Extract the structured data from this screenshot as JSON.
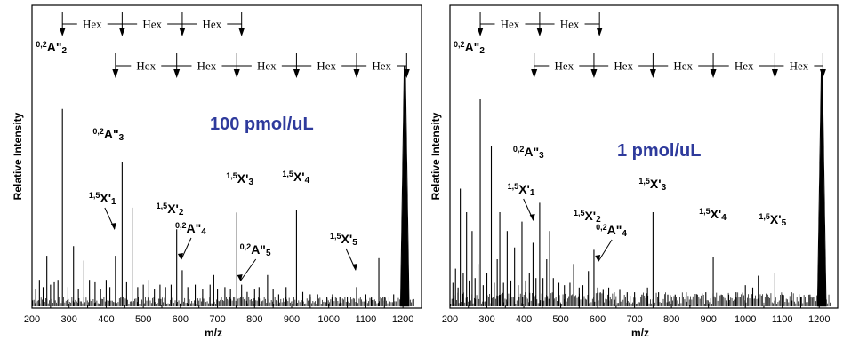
{
  "colors": {
    "concentration_text": "#2e3a9c"
  },
  "chart_data": [
    {
      "type": "line",
      "panel": "left",
      "concentration": "100 pmol/uL",
      "xlabel": "m/z",
      "ylabel": "Relative Intensity",
      "xlim": [
        200,
        1250
      ],
      "ylim": [
        0,
        100
      ],
      "grid": false,
      "x_ticks": [
        200,
        300,
        400,
        500,
        600,
        700,
        800,
        900,
        1000,
        1100,
        1200
      ],
      "peaks": [
        {
          "mz": 210,
          "i": 7
        },
        {
          "mz": 220,
          "i": 11
        },
        {
          "mz": 230,
          "i": 8
        },
        {
          "mz": 240,
          "i": 21
        },
        {
          "mz": 250,
          "i": 9
        },
        {
          "mz": 260,
          "i": 10
        },
        {
          "mz": 270,
          "i": 11
        },
        {
          "mz": 282,
          "i": 82
        },
        {
          "mz": 297,
          "i": 8
        },
        {
          "mz": 312,
          "i": 25
        },
        {
          "mz": 325,
          "i": 7
        },
        {
          "mz": 340,
          "i": 19
        },
        {
          "mz": 355,
          "i": 11
        },
        {
          "mz": 370,
          "i": 10
        },
        {
          "mz": 385,
          "i": 7
        },
        {
          "mz": 400,
          "i": 11
        },
        {
          "mz": 410,
          "i": 8
        },
        {
          "mz": 425,
          "i": 21
        },
        {
          "mz": 443,
          "i": 60
        },
        {
          "mz": 455,
          "i": 10
        },
        {
          "mz": 470,
          "i": 41
        },
        {
          "mz": 485,
          "i": 8
        },
        {
          "mz": 500,
          "i": 9
        },
        {
          "mz": 515,
          "i": 11
        },
        {
          "mz": 530,
          "i": 7
        },
        {
          "mz": 545,
          "i": 9
        },
        {
          "mz": 560,
          "i": 8
        },
        {
          "mz": 575,
          "i": 9
        },
        {
          "mz": 590,
          "i": 32
        },
        {
          "mz": 605,
          "i": 15
        },
        {
          "mz": 620,
          "i": 8
        },
        {
          "mz": 640,
          "i": 9
        },
        {
          "mz": 660,
          "i": 7
        },
        {
          "mz": 680,
          "i": 9
        },
        {
          "mz": 690,
          "i": 13
        },
        {
          "mz": 700,
          "i": 7
        },
        {
          "mz": 720,
          "i": 8
        },
        {
          "mz": 735,
          "i": 7
        },
        {
          "mz": 752,
          "i": 39
        },
        {
          "mz": 765,
          "i": 9
        },
        {
          "mz": 780,
          "i": 6
        },
        {
          "mz": 800,
          "i": 7
        },
        {
          "mz": 812,
          "i": 8
        },
        {
          "mz": 835,
          "i": 13
        },
        {
          "mz": 850,
          "i": 7
        },
        {
          "mz": 865,
          "i": 5
        },
        {
          "mz": 885,
          "i": 8
        },
        {
          "mz": 913,
          "i": 40
        },
        {
          "mz": 930,
          "i": 6
        },
        {
          "mz": 950,
          "i": 5
        },
        {
          "mz": 970,
          "i": 5
        },
        {
          "mz": 995,
          "i": 4
        },
        {
          "mz": 1010,
          "i": 5
        },
        {
          "mz": 1030,
          "i": 4
        },
        {
          "mz": 1050,
          "i": 4
        },
        {
          "mz": 1075,
          "i": 8
        },
        {
          "mz": 1100,
          "i": 5
        },
        {
          "mz": 1115,
          "i": 4
        },
        {
          "mz": 1135,
          "i": 20
        },
        {
          "mz": 1150,
          "i": 4
        },
        {
          "mz": 1175,
          "i": 5
        },
        {
          "mz": 1205,
          "i": 100
        }
      ],
      "annotations": [
        {
          "label": "A\"2",
          "sup": "0,2",
          "mz": 282
        },
        {
          "label": "A\"3",
          "sup": "0,2",
          "mz": 443
        },
        {
          "label": "X'1",
          "sup": "1,5",
          "mz": 425
        },
        {
          "label": "X'2",
          "sup": "1,5",
          "mz": 590
        },
        {
          "label": "A\"4",
          "sup": "0,2",
          "mz": 605
        },
        {
          "label": "X'3",
          "sup": "1,5",
          "mz": 752
        },
        {
          "label": "A\"5",
          "sup": "0,2",
          "mz": 765
        },
        {
          "label": "X'4",
          "sup": "1,5",
          "mz": 913
        },
        {
          "label": "X'5",
          "sup": "1,5",
          "mz": 1075
        }
      ],
      "hex_ladder_top": {
        "label": "Hex",
        "ticks": [
          282,
          443,
          605,
          765
        ]
      },
      "hex_ladder_bottom": {
        "label": "Hex",
        "ticks": [
          425,
          590,
          752,
          913,
          1075,
          1210
        ]
      }
    },
    {
      "type": "line",
      "panel": "right",
      "concentration": "1 pmol/uL",
      "xlabel": "m/z",
      "ylabel": "Relative Intensity",
      "xlim": [
        200,
        1250
      ],
      "ylim": [
        0,
        100
      ],
      "grid": false,
      "x_ticks": [
        200,
        300,
        400,
        500,
        600,
        700,
        800,
        900,
        1000,
        1100,
        1200
      ],
      "peaks": [
        {
          "mz": 208,
          "i": 10
        },
        {
          "mz": 215,
          "i": 16
        },
        {
          "mz": 222,
          "i": 8
        },
        {
          "mz": 228,
          "i": 50
        },
        {
          "mz": 236,
          "i": 14
        },
        {
          "mz": 245,
          "i": 40
        },
        {
          "mz": 252,
          "i": 11
        },
        {
          "mz": 260,
          "i": 32
        },
        {
          "mz": 268,
          "i": 12
        },
        {
          "mz": 276,
          "i": 18
        },
        {
          "mz": 282,
          "i": 88
        },
        {
          "mz": 290,
          "i": 9
        },
        {
          "mz": 300,
          "i": 14
        },
        {
          "mz": 312,
          "i": 68
        },
        {
          "mz": 320,
          "i": 10
        },
        {
          "mz": 328,
          "i": 20
        },
        {
          "mz": 335,
          "i": 40
        },
        {
          "mz": 345,
          "i": 10
        },
        {
          "mz": 355,
          "i": 32
        },
        {
          "mz": 365,
          "i": 11
        },
        {
          "mz": 375,
          "i": 25
        },
        {
          "mz": 385,
          "i": 9
        },
        {
          "mz": 395,
          "i": 36
        },
        {
          "mz": 405,
          "i": 11
        },
        {
          "mz": 415,
          "i": 14
        },
        {
          "mz": 425,
          "i": 27
        },
        {
          "mz": 433,
          "i": 12
        },
        {
          "mz": 443,
          "i": 44
        },
        {
          "mz": 452,
          "i": 12
        },
        {
          "mz": 462,
          "i": 20
        },
        {
          "mz": 470,
          "i": 32
        },
        {
          "mz": 480,
          "i": 12
        },
        {
          "mz": 495,
          "i": 10
        },
        {
          "mz": 510,
          "i": 9
        },
        {
          "mz": 525,
          "i": 10
        },
        {
          "mz": 535,
          "i": 18
        },
        {
          "mz": 550,
          "i": 8
        },
        {
          "mz": 560,
          "i": 9
        },
        {
          "mz": 575,
          "i": 15
        },
        {
          "mz": 590,
          "i": 24
        },
        {
          "mz": 600,
          "i": 8
        },
        {
          "mz": 615,
          "i": 7
        },
        {
          "mz": 630,
          "i": 8
        },
        {
          "mz": 645,
          "i": 6
        },
        {
          "mz": 660,
          "i": 7
        },
        {
          "mz": 680,
          "i": 6
        },
        {
          "mz": 700,
          "i": 6
        },
        {
          "mz": 720,
          "i": 5
        },
        {
          "mz": 735,
          "i": 8
        },
        {
          "mz": 750,
          "i": 40
        },
        {
          "mz": 765,
          "i": 6
        },
        {
          "mz": 790,
          "i": 5
        },
        {
          "mz": 810,
          "i": 5
        },
        {
          "mz": 840,
          "i": 6
        },
        {
          "mz": 870,
          "i": 5
        },
        {
          "mz": 893,
          "i": 6
        },
        {
          "mz": 913,
          "i": 21
        },
        {
          "mz": 935,
          "i": 5
        },
        {
          "mz": 955,
          "i": 5
        },
        {
          "mz": 975,
          "i": 6
        },
        {
          "mz": 1000,
          "i": 9
        },
        {
          "mz": 1020,
          "i": 8
        },
        {
          "mz": 1035,
          "i": 13
        },
        {
          "mz": 1060,
          "i": 5
        },
        {
          "mz": 1080,
          "i": 14
        },
        {
          "mz": 1100,
          "i": 5
        },
        {
          "mz": 1125,
          "i": 6
        },
        {
          "mz": 1150,
          "i": 4
        },
        {
          "mz": 1175,
          "i": 5
        },
        {
          "mz": 1207,
          "i": 100
        }
      ],
      "annotations": [
        {
          "label": "A\"2",
          "sup": "0,2",
          "mz": 282
        },
        {
          "label": "A\"3",
          "sup": "0,2",
          "mz": 443
        },
        {
          "label": "X'1",
          "sup": "1,5",
          "mz": 428
        },
        {
          "label": "X'2",
          "sup": "1,5",
          "mz": 590
        },
        {
          "label": "A\"4",
          "sup": "0,2",
          "mz": 605
        },
        {
          "label": "X'3",
          "sup": "1,5",
          "mz": 750
        },
        {
          "label": "X'4",
          "sup": "1,5",
          "mz": 913
        },
        {
          "label": "X'5",
          "sup": "1,5",
          "mz": 1080
        }
      ],
      "hex_ladder_top": {
        "label": "Hex",
        "ticks": [
          282,
          443,
          605
        ]
      },
      "hex_ladder_bottom": {
        "label": "Hex",
        "ticks": [
          428,
          590,
          750,
          913,
          1080,
          1210
        ]
      }
    }
  ]
}
